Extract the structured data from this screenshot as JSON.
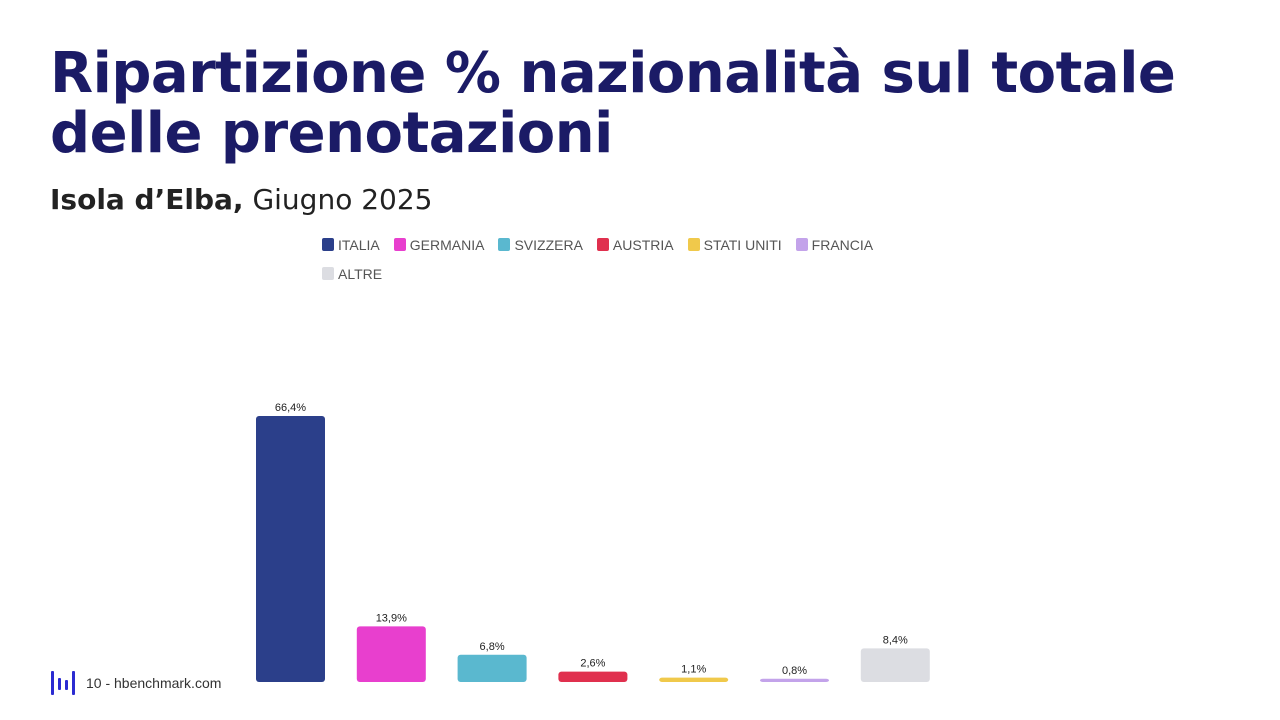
{
  "page": {
    "title": "Ripartizione % nazionalità sul totale delle prenotazioni",
    "subtitle_location": "Isola d’Elba,",
    "subtitle_period": " Giugno 2025"
  },
  "footer": {
    "text": "10 - hbenchmark.com",
    "logo_icon": "hbenchmark-logo-icon",
    "logo_color": "#2b2bd1"
  },
  "chart_data": {
    "type": "bar",
    "categories": [
      "ITALIA",
      "GERMANIA",
      "SVIZZERA",
      "AUSTRIA",
      "STATI UNITI",
      "FRANCIA",
      "ALTRE"
    ],
    "values": [
      66.4,
      13.9,
      6.8,
      2.6,
      1.1,
      0.8,
      8.4
    ],
    "value_labels": [
      "66,4%",
      "13,9%",
      "6,8%",
      "2,6%",
      "1,1%",
      "0,8%",
      "8,4%"
    ],
    "colors": [
      "#2b3f8a",
      "#e83fce",
      "#5ab8cf",
      "#e0304e",
      "#f0c94b",
      "#c3a3ea",
      "#dcdde2"
    ],
    "title": "",
    "xlabel": "",
    "ylabel": "",
    "ylim": [
      0,
      66.4
    ],
    "grid": false,
    "legend": "top"
  }
}
